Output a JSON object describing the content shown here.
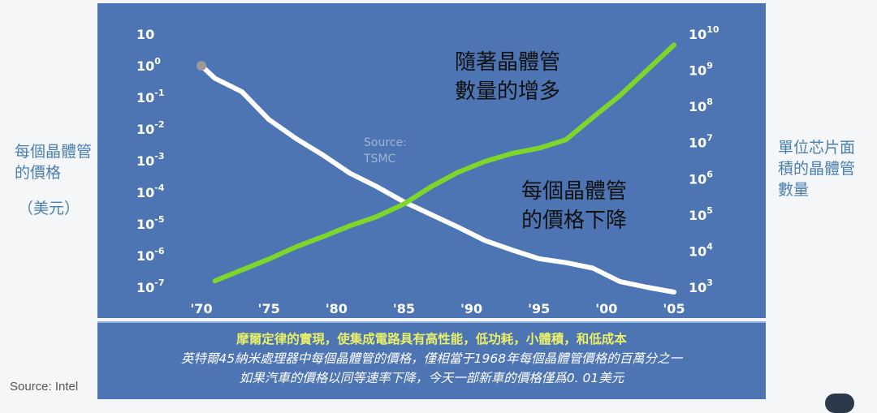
{
  "labels": {
    "left_axis_title": "每個晶體管的價格",
    "left_axis_unit": "（美元）",
    "right_axis_title": "單位芯片面積的晶體管數量",
    "source_intel": "Source: Intel"
  },
  "caption": {
    "line1": "摩爾定律的實現，使集成電路具有高性能，低功耗，小體積，和低成本",
    "line2": "英特爾45納米處理器中每個晶體管的價格，僅相當于1968年每個晶體管價格的百萬分之一",
    "line3": "如果汽車的價格以同等速率下降，今天一部新車的價格僅爲0. 01美元"
  },
  "colors": {
    "panel": "#4d74b3",
    "count_line": "#7fd62a",
    "price_line": "#ffffff",
    "caption_highlight": "#e8f06a",
    "side_text": "#4a7fb0"
  },
  "chart_data": {
    "type": "line",
    "x": [
      1970,
      1971,
      1973,
      1975,
      1977,
      1979,
      1981,
      1983,
      1985,
      1987,
      1989,
      1991,
      1993,
      1995,
      1997,
      1999,
      2001,
      2003,
      2005
    ],
    "x_tick_labels": [
      "'70",
      "'75",
      "'80",
      "'85",
      "'90",
      "'95",
      "'00",
      "'05"
    ],
    "x_ticks": [
      1970,
      1975,
      1980,
      1985,
      1990,
      1995,
      2000,
      2005
    ],
    "y_left": {
      "scale": "log",
      "range": [
        1e-07,
        10
      ],
      "tick_values": [
        10,
        1,
        0.1,
        0.01,
        0.001,
        0.0001,
        1e-05,
        1e-06,
        1e-07
      ],
      "tick_labels": [
        {
          "base": "10",
          "exp": ""
        },
        {
          "base": "10",
          "exp": "0"
        },
        {
          "base": "10",
          "exp": "-1"
        },
        {
          "base": "10",
          "exp": "-2"
        },
        {
          "base": "10",
          "exp": "-3"
        },
        {
          "base": "10",
          "exp": "-4"
        },
        {
          "base": "10",
          "exp": "-5"
        },
        {
          "base": "10",
          "exp": "-6"
        },
        {
          "base": "10",
          "exp": "-7"
        }
      ]
    },
    "y_right": {
      "scale": "log",
      "range": [
        1000,
        10000000000
      ],
      "tick_values": [
        10000000000,
        1000000000,
        100000000,
        10000000,
        1000000,
        100000,
        10000,
        1000
      ],
      "tick_labels": [
        {
          "base": "10",
          "exp": "10"
        },
        {
          "base": "10",
          "exp": "9"
        },
        {
          "base": "10",
          "exp": "8"
        },
        {
          "base": "10",
          "exp": "7"
        },
        {
          "base": "10",
          "exp": "6"
        },
        {
          "base": "10",
          "exp": "5"
        },
        {
          "base": "10",
          "exp": "4"
        },
        {
          "base": "10",
          "exp": "3"
        }
      ]
    },
    "series": [
      {
        "axis": "left",
        "x": [
          1970,
          1971,
          1973,
          1975,
          1977,
          1979,
          1981,
          1983,
          1985,
          1987,
          1989,
          1991,
          1993,
          1995,
          1997,
          1999,
          2001,
          2003,
          2005
        ],
        "values": [
          1,
          0.4,
          0.15,
          0.02,
          0.005,
          0.0015,
          0.0004,
          0.00015,
          5e-05,
          2e-05,
          8e-06,
          3e-06,
          1.5e-06,
          8e-07,
          6e-07,
          4e-07,
          1.5e-07,
          1e-07,
          7e-08
        ]
      },
      {
        "axis": "right",
        "x": [
          1971,
          1973,
          1975,
          1977,
          1979,
          1981,
          1983,
          1985,
          1987,
          1989,
          1991,
          1993,
          1995,
          1997,
          1999,
          2001,
          2003,
          2005
        ],
        "values": [
          1500,
          3000,
          6000,
          13000,
          25000,
          50000,
          90000,
          200000,
          600000,
          1500000,
          3000000,
          5000000,
          7000000,
          12000000,
          50000000,
          200000000,
          1000000000,
          5000000000
        ]
      }
    ],
    "annotations": [
      {
        "text_line1": "隨著晶體管",
        "text_line2": "數量的增多"
      },
      {
        "text_line1": "每個晶體管",
        "text_line2": "的價格下降"
      },
      {
        "text_line1": "Source:",
        "text_line2": "TSMC"
      }
    ]
  }
}
